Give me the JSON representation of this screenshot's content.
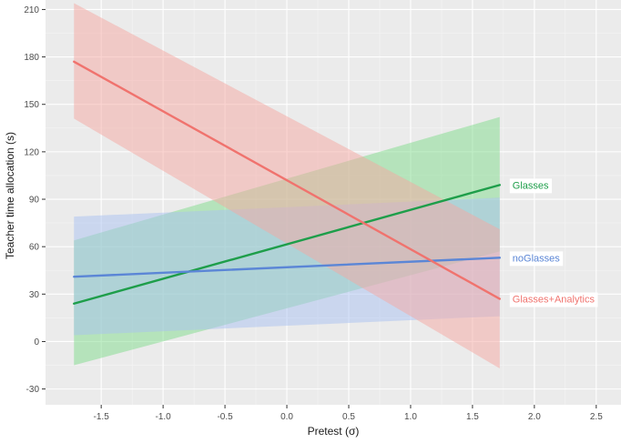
{
  "chart_data": {
    "type": "line",
    "xlabel": "Pretest (σ)",
    "ylabel": "Teacher time allocation (s)",
    "xlim": [
      -1.95,
      2.7
    ],
    "ylim": [
      -40,
      216
    ],
    "x_ticks": [
      -1.5,
      -1.0,
      -0.5,
      0.0,
      0.5,
      1.0,
      1.5,
      2.0,
      2.5
    ],
    "x_tick_labels": [
      "-1.5",
      "-1.0",
      "-0.5",
      "0.0",
      "0.5",
      "1.0",
      "1.5",
      "2.0",
      "2.5"
    ],
    "y_ticks": [
      -30,
      0,
      30,
      60,
      90,
      120,
      150,
      180,
      210
    ],
    "y_tick_labels": [
      "-30",
      "0",
      "30",
      "60",
      "90",
      "120",
      "150",
      "180",
      "210"
    ],
    "grid": true,
    "legend": "direct labels at line ends (right)",
    "x": [
      -1.72,
      1.72
    ],
    "series": [
      {
        "name": "Glasses",
        "color": "#1e9e4a",
        "fill": "#7fdc8c",
        "values": [
          24,
          99
        ],
        "lower": [
          -15,
          57
        ],
        "upper": [
          64,
          142
        ]
      },
      {
        "name": "noGlasses",
        "color": "#5b86d6",
        "fill": "#a9c2f2",
        "values": [
          41,
          53
        ],
        "lower": [
          4,
          16
        ],
        "upper": [
          79,
          91
        ]
      },
      {
        "name": "Glasses+Analytics",
        "color": "#f0736e",
        "fill": "#f6a7a2",
        "values": [
          177,
          27
        ],
        "lower": [
          141,
          -17
        ],
        "upper": [
          214,
          71
        ]
      }
    ]
  }
}
